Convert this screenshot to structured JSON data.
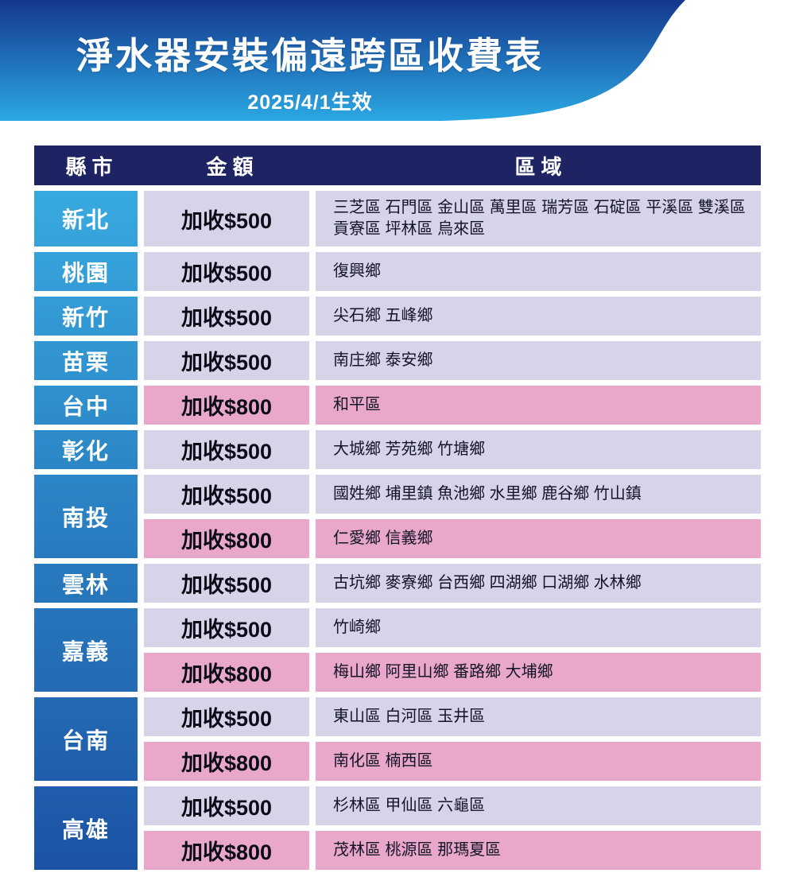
{
  "header": {
    "title": "淨水器安裝偏遠跨區收費表",
    "effective_date": "2025/4/1生效"
  },
  "table": {
    "columns": [
      "縣市",
      "金額",
      "區域"
    ],
    "rows": [
      {
        "county": "新北",
        "tall": true,
        "entries": [
          {
            "amount": "加收$500",
            "tier": "500",
            "regions": "三芝區 石門區 金山區 萬里區 瑞芳區 石碇區 平溪區 雙溪區 貢寮區 坪林區 烏來區"
          }
        ]
      },
      {
        "county": "桃園",
        "entries": [
          {
            "amount": "加收$500",
            "tier": "500",
            "regions": "復興鄉"
          }
        ]
      },
      {
        "county": "新竹",
        "entries": [
          {
            "amount": "加收$500",
            "tier": "500",
            "regions": "尖石鄉 五峰鄉"
          }
        ]
      },
      {
        "county": "苗栗",
        "entries": [
          {
            "amount": "加收$500",
            "tier": "500",
            "regions": "南庄鄉 泰安鄉"
          }
        ]
      },
      {
        "county": "台中",
        "entries": [
          {
            "amount": "加收$800",
            "tier": "800",
            "regions": "和平區"
          }
        ]
      },
      {
        "county": "彰化",
        "entries": [
          {
            "amount": "加收$500",
            "tier": "500",
            "regions": "大城鄉 芳苑鄉 竹塘鄉"
          }
        ]
      },
      {
        "county": "南投",
        "entries": [
          {
            "amount": "加收$500",
            "tier": "500",
            "regions": "國姓鄉 埔里鎮 魚池鄉 水里鄉 鹿谷鄉 竹山鎮"
          },
          {
            "amount": "加收$800",
            "tier": "800",
            "regions": "仁愛鄉 信義鄉"
          }
        ]
      },
      {
        "county": "雲林",
        "entries": [
          {
            "amount": "加收$500",
            "tier": "500",
            "regions": "古坑鄉 麥寮鄉 台西鄉 四湖鄉 口湖鄉 水林鄉"
          }
        ]
      },
      {
        "county": "嘉義",
        "entries": [
          {
            "amount": "加收$500",
            "tier": "500",
            "regions": "竹崎鄉"
          },
          {
            "amount": "加收$800",
            "tier": "800",
            "regions": "梅山鄉 阿里山鄉 番路鄉 大埔鄉"
          }
        ]
      },
      {
        "county": "台南",
        "entries": [
          {
            "amount": "加收$500",
            "tier": "500",
            "regions": "東山區 白河區 玉井區"
          },
          {
            "amount": "加收$800",
            "tier": "800",
            "regions": "南化區 楠西區"
          }
        ]
      },
      {
        "county": "高雄",
        "entries": [
          {
            "amount": "加收$500",
            "tier": "500",
            "regions": "杉林區 甲仙區 六龜區"
          },
          {
            "amount": "加收$800",
            "tier": "800",
            "regions": "茂林區 桃源區 那瑪夏區"
          }
        ]
      }
    ]
  },
  "theme": {
    "banner_gradient_top": "#14378D",
    "banner_gradient_bottom": "#2BA8E3",
    "table_header_bg": "#1E2363",
    "fee_500_bg": "#D5D4E8",
    "fee_800_bg": "#E9A7C9",
    "county_gradient_top": "#38AADF",
    "county_gradient_bottom": "#1B53A4"
  }
}
